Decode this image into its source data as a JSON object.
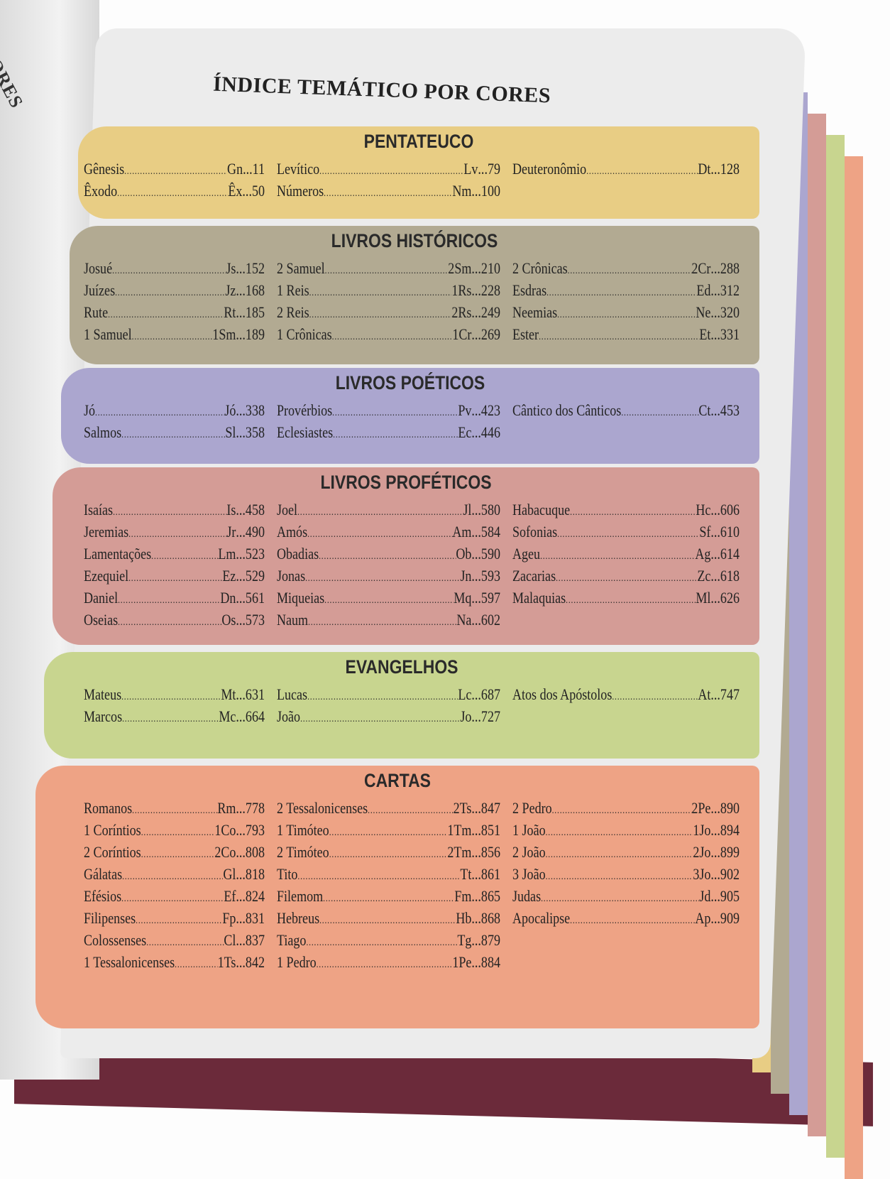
{
  "left_page": {
    "heading": "CORES"
  },
  "title": "ÍNDICE TEMÁTICO POR CORES",
  "sections": [
    {
      "title": "PENTATEUCO",
      "color": "#e8cd84",
      "columns": [
        [
          {
            "name": "Gênesis",
            "abbr": "Gn",
            "page": "11"
          },
          {
            "name": "Êxodo",
            "abbr": "Êx",
            "page": "50"
          }
        ],
        [
          {
            "name": "Levítico",
            "abbr": "Lv",
            "page": "79"
          },
          {
            "name": "Números",
            "abbr": "Nm",
            "page": "100"
          }
        ],
        [
          {
            "name": "Deuteronômio",
            "abbr": "Dt",
            "page": "128"
          }
        ]
      ]
    },
    {
      "title": "LIVROS HISTÓRICOS",
      "color": "#b2aa92",
      "columns": [
        [
          {
            "name": "Josué",
            "abbr": "Js",
            "page": "152"
          },
          {
            "name": "Juízes",
            "abbr": "Jz",
            "page": "168"
          },
          {
            "name": "Rute",
            "abbr": "Rt",
            "page": "185"
          },
          {
            "name": "1 Samuel",
            "abbr": "1Sm",
            "page": "189"
          }
        ],
        [
          {
            "name": "2 Samuel",
            "abbr": "2Sm",
            "page": "210"
          },
          {
            "name": "1 Reis",
            "abbr": "1Rs",
            "page": "228"
          },
          {
            "name": "2 Reis",
            "abbr": "2Rs",
            "page": "249"
          },
          {
            "name": "1 Crônicas",
            "abbr": "1Cr",
            "page": "269"
          }
        ],
        [
          {
            "name": "2 Crônicas",
            "abbr": "2Cr",
            "page": "288"
          },
          {
            "name": "Esdras",
            "abbr": "Ed",
            "page": "312"
          },
          {
            "name": "Neemias",
            "abbr": "Ne",
            "page": "320"
          },
          {
            "name": "Ester",
            "abbr": "Et",
            "page": "331"
          }
        ]
      ]
    },
    {
      "title": "LIVROS POÉTICOS",
      "color": "#aba6cf",
      "columns": [
        [
          {
            "name": "Jó",
            "abbr": "Jó",
            "page": "338"
          },
          {
            "name": "Salmos",
            "abbr": "Sl",
            "page": "358"
          }
        ],
        [
          {
            "name": "Provérbios",
            "abbr": "Pv",
            "page": "423"
          },
          {
            "name": "Eclesiastes",
            "abbr": "Ec",
            "page": "446"
          }
        ],
        [
          {
            "name": "Cântico dos Cânticos",
            "abbr": "Ct",
            "page": "453"
          }
        ]
      ]
    },
    {
      "title": "LIVROS PROFÉTICOS",
      "color": "#d49c96",
      "columns": [
        [
          {
            "name": "Isaías",
            "abbr": "Is",
            "page": "458"
          },
          {
            "name": "Jeremias",
            "abbr": "Jr",
            "page": "490"
          },
          {
            "name": "Lamentações",
            "abbr": "Lm",
            "page": "523"
          },
          {
            "name": "Ezequiel",
            "abbr": "Ez",
            "page": "529"
          },
          {
            "name": "Daniel",
            "abbr": "Dn",
            "page": "561"
          },
          {
            "name": "Oseias",
            "abbr": "Os",
            "page": "573"
          }
        ],
        [
          {
            "name": "Joel",
            "abbr": "Jl",
            "page": "580"
          },
          {
            "name": "Amós",
            "abbr": "Am",
            "page": "584"
          },
          {
            "name": "Obadias",
            "abbr": "Ob",
            "page": "590"
          },
          {
            "name": "Jonas",
            "abbr": "Jn",
            "page": "593"
          },
          {
            "name": "Miqueias",
            "abbr": "Mq",
            "page": "597"
          },
          {
            "name": "Naum",
            "abbr": "Na",
            "page": "602"
          }
        ],
        [
          {
            "name": "Habacuque",
            "abbr": "Hc",
            "page": "606"
          },
          {
            "name": "Sofonias",
            "abbr": "Sf",
            "page": "610"
          },
          {
            "name": "Ageu",
            "abbr": "Ag",
            "page": "614"
          },
          {
            "name": "Zacarias",
            "abbr": "Zc",
            "page": "618"
          },
          {
            "name": "Malaquias",
            "abbr": "Ml",
            "page": "626"
          }
        ]
      ]
    },
    {
      "title": "EVANGELHOS",
      "color": "#c8d58f",
      "columns": [
        [
          {
            "name": "Mateus",
            "abbr": "Mt",
            "page": "631"
          },
          {
            "name": "Marcos",
            "abbr": "Mc",
            "page": "664"
          }
        ],
        [
          {
            "name": "Lucas",
            "abbr": "Lc",
            "page": "687"
          },
          {
            "name": "João",
            "abbr": "Jo",
            "page": "727"
          }
        ],
        [
          {
            "name": "Atos dos Apóstolos",
            "abbr": "At",
            "page": "747"
          }
        ]
      ]
    },
    {
      "title": "CARTAS",
      "color": "#eea385",
      "columns": [
        [
          {
            "name": "Romanos",
            "abbr": "Rm",
            "page": "778"
          },
          {
            "name": "1 Coríntios",
            "abbr": "1Co",
            "page": "793"
          },
          {
            "name": "2 Coríntios",
            "abbr": "2Co",
            "page": "808"
          },
          {
            "name": "Gálatas",
            "abbr": "Gl",
            "page": "818"
          },
          {
            "name": "Efésios",
            "abbr": "Ef",
            "page": "824"
          },
          {
            "name": "Filipenses",
            "abbr": "Fp",
            "page": "831"
          },
          {
            "name": "Colossenses",
            "abbr": "Cl",
            "page": "837"
          },
          {
            "name": "1 Tessalonicenses",
            "abbr": "1Ts",
            "page": "842"
          }
        ],
        [
          {
            "name": "2 Tessalonicenses",
            "abbr": "2Ts",
            "page": "847"
          },
          {
            "name": "1 Timóteo",
            "abbr": "1Tm",
            "page": "851"
          },
          {
            "name": "2 Timóteo",
            "abbr": "2Tm",
            "page": "856"
          },
          {
            "name": "Tito",
            "abbr": "Tt",
            "page": "861"
          },
          {
            "name": "Filemom",
            "abbr": "Fm",
            "page": "865"
          },
          {
            "name": "Hebreus",
            "abbr": "Hb",
            "page": "868"
          },
          {
            "name": "Tiago",
            "abbr": "Tg",
            "page": "879"
          },
          {
            "name": "1 Pedro",
            "abbr": "1Pe",
            "page": "884"
          }
        ],
        [
          {
            "name": "2 Pedro",
            "abbr": "2Pe",
            "page": "890"
          },
          {
            "name": "1 João",
            "abbr": "1Jo",
            "page": "894"
          },
          {
            "name": "2 João",
            "abbr": "2Jo",
            "page": "899"
          },
          {
            "name": "3 João",
            "abbr": "3Jo",
            "page": "902"
          },
          {
            "name": "Judas",
            "abbr": "Jd",
            "page": "905"
          },
          {
            "name": "Apocalipse",
            "abbr": "Ap",
            "page": "909"
          }
        ]
      ]
    }
  ]
}
